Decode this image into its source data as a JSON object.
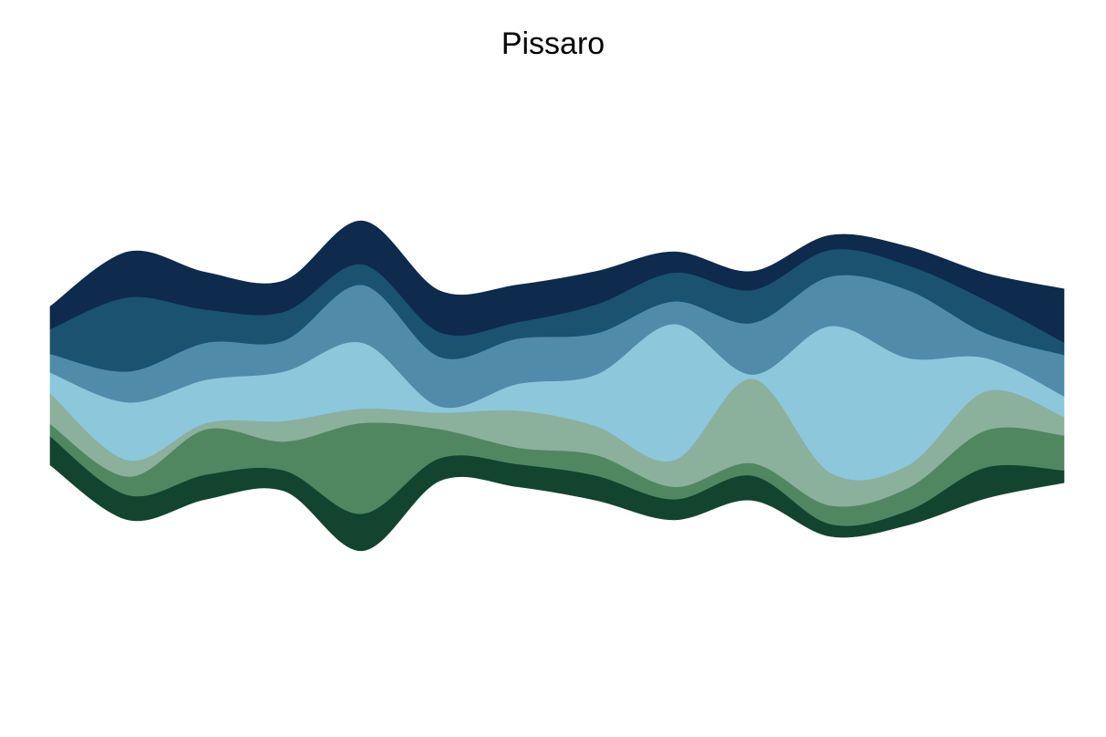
{
  "chart_data": {
    "type": "area",
    "subtype": "streamgraph",
    "title": "Pissaro",
    "xlabel": "",
    "ylabel": "",
    "axes_visible": false,
    "grid": false,
    "legend": "none",
    "x": [
      0,
      1,
      2,
      3,
      4,
      5,
      6,
      7,
      8,
      9,
      10,
      11,
      12,
      13
    ],
    "series": [
      {
        "color": "#134430",
        "values": [
          1.4,
          1.2,
          1.2,
          1.0,
          1.8,
          1.1,
          1.1,
          1.2,
          1.0,
          1.2,
          0.6,
          0.7,
          1.5,
          0.6
        ]
      },
      {
        "color": "#508760",
        "values": [
          0.6,
          0.9,
          2.2,
          1.4,
          4.4,
          1.4,
          0.8,
          1.0,
          0.6,
          0.6,
          0.9,
          1.1,
          1.8,
          1.7
        ]
      },
      {
        "color": "#8bb09c",
        "values": [
          1.5,
          0.8,
          0.3,
          1.0,
          0.7,
          0.8,
          1.8,
          1.4,
          1.3,
          4.1,
          1.6,
          1.1,
          1.9,
          0.9
        ]
      },
      {
        "color": "#8dc7dc",
        "values": [
          1.0,
          2.8,
          2.1,
          2.4,
          3.2,
          0.3,
          1.3,
          2.5,
          6.6,
          0.2,
          7.1,
          5.2,
          1.6,
          1.0
        ]
      },
      {
        "color": "#508caa",
        "values": [
          0.9,
          1.5,
          1.8,
          1.5,
          2.8,
          2.4,
          2.2,
          2.0,
          1.1,
          2.5,
          2.4,
          3.3,
          1.2,
          2.0
        ]
      },
      {
        "color": "#1a5270",
        "values": [
          1.2,
          3.6,
          1.6,
          1.4,
          1.0,
          1.2,
          0.8,
          1.4,
          1.4,
          1.6,
          1.3,
          1.2,
          1.6,
          0.6
        ]
      },
      {
        "color": "#0e2a4d",
        "values": [
          1.1,
          2.2,
          1.8,
          1.5,
          2.1,
          2.0,
          1.8,
          1.6,
          1.0,
          0.9,
          0.7,
          0.9,
          1.3,
          2.6
        ]
      }
    ]
  }
}
